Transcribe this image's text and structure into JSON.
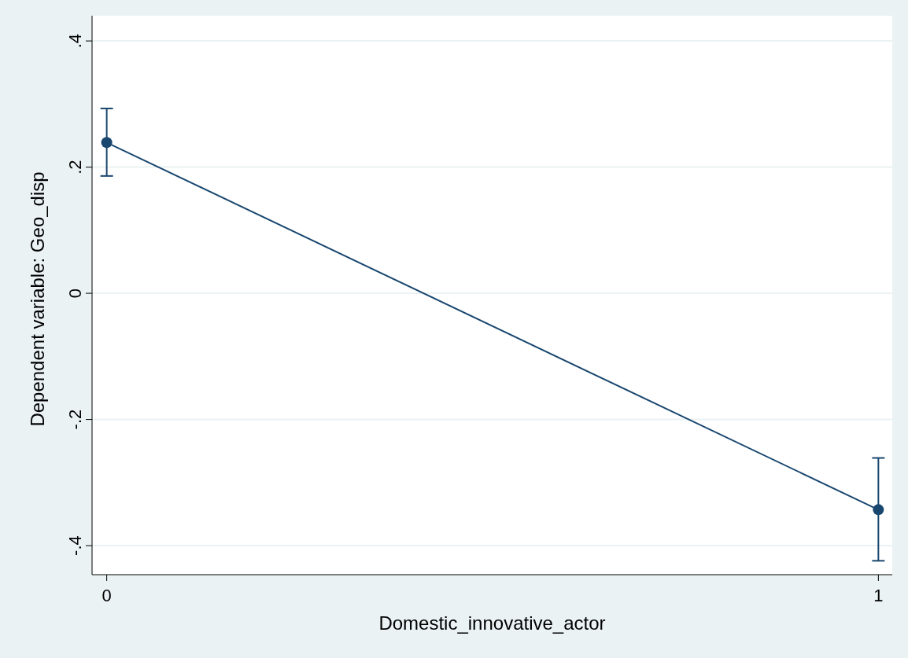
{
  "chart_data": {
    "type": "line",
    "xlabel": "Domestic_innovative_actor",
    "ylabel": "Dependent variable: Geo_disp",
    "x": [
      0,
      1
    ],
    "series": [
      {
        "color": "#1a476f",
        "values": [
          0.239,
          -0.343
        ],
        "errors": [
          [
            0.186,
            0.293
          ],
          [
            -0.424,
            -0.261
          ]
        ]
      }
    ],
    "xlim": [
      -0.019,
      1.018
    ],
    "xticks": [
      0,
      1
    ],
    "ylim": [
      -0.446,
      0.44
    ],
    "yticks": [
      {
        "value": -0.4,
        "label": "-.4"
      },
      {
        "value": -0.2,
        "label": "-.2"
      },
      {
        "value": 0,
        "label": "0"
      },
      {
        "value": 0.2,
        "label": ".2"
      },
      {
        "value": 0.4,
        "label": ".4"
      }
    ],
    "grid": "y",
    "marker": "circle",
    "line_style": "solid"
  }
}
